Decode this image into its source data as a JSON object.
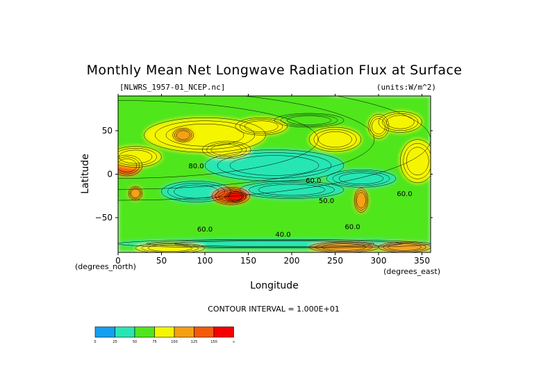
{
  "chart_data": {
    "type": "heatmap",
    "title": "Monthly Mean Net Longwave Radiation Flux at Surface",
    "file_label": "[NLWRS_1957-01_NCEP.nc]",
    "units_label": "(units:W/m^2)",
    "xlabel": "Longitude",
    "ylabel": "Latitude",
    "x_unit_label": "(degrees_east)",
    "y_unit_label": "(degrees_north)",
    "xlim": [
      0,
      360
    ],
    "ylim": [
      -90,
      90
    ],
    "x_ticks": [
      {
        "value": 0,
        "label": "0"
      },
      {
        "value": 50,
        "label": "50"
      },
      {
        "value": 100,
        "label": "100"
      },
      {
        "value": 150,
        "label": "150"
      },
      {
        "value": 200,
        "label": "200"
      },
      {
        "value": 250,
        "label": "250"
      },
      {
        "value": 300,
        "label": "300"
      },
      {
        "value": 350,
        "label": "350"
      }
    ],
    "y_ticks": [
      {
        "value": 50,
        "label": "50"
      },
      {
        "value": 0,
        "label": "0"
      },
      {
        "value": -50,
        "label": "−50"
      }
    ],
    "contour_interval_label": "CONTOUR INTERVAL = 1.000E+01",
    "contour_labels": [
      {
        "lon": 90,
        "lat": 7,
        "text": "80.0"
      },
      {
        "lon": 225,
        "lat": -10,
        "text": "60.0"
      },
      {
        "lon": 240,
        "lat": -33,
        "text": "50.0"
      },
      {
        "lon": 270,
        "lat": -63,
        "text": "60.0"
      },
      {
        "lon": 100,
        "lat": -66,
        "text": "60.0"
      },
      {
        "lon": 190,
        "lat": -72,
        "text": "40.0"
      },
      {
        "lon": 330,
        "lat": -25,
        "text": "60.0"
      }
    ],
    "colorbar": {
      "bins": [
        {
          "color": "#14a0f0",
          "label": "0"
        },
        {
          "color": "#28e6b4",
          "label": "25"
        },
        {
          "color": "#50e61e",
          "label": "50"
        },
        {
          "color": "#f5f500",
          "label": "75"
        },
        {
          "color": "#f5a014",
          "label": "100"
        },
        {
          "color": "#f55a0a",
          "label": "125"
        },
        {
          "color": "#f50000",
          "label": "150"
        }
      ],
      "end_label": "∞"
    },
    "regions": [
      {
        "lon": 0,
        "lat": 40,
        "rx": 360,
        "ry": 70,
        "value": 55
      },
      {
        "lon": 180,
        "lat": 10,
        "rx": 80,
        "ry": 18,
        "value": 40
      },
      {
        "lon": 200,
        "lat": -18,
        "rx": 60,
        "ry": 10,
        "value": 42
      },
      {
        "lon": 90,
        "lat": -20,
        "rx": 40,
        "ry": 12,
        "value": 45
      },
      {
        "lon": 280,
        "lat": -5,
        "rx": 40,
        "ry": 10,
        "value": 42
      },
      {
        "lon": 10,
        "lat": 10,
        "rx": 18,
        "ry": 12,
        "value": 125
      },
      {
        "lon": 20,
        "lat": 20,
        "rx": 30,
        "ry": 12,
        "value": 95
      },
      {
        "lon": 100,
        "lat": 45,
        "rx": 70,
        "ry": 20,
        "value": 80
      },
      {
        "lon": 75,
        "lat": 45,
        "rx": 12,
        "ry": 8,
        "value": 110
      },
      {
        "lon": 125,
        "lat": 28,
        "rx": 28,
        "ry": 10,
        "value": 85
      },
      {
        "lon": 130,
        "lat": -25,
        "rx": 22,
        "ry": 10,
        "value": 135
      },
      {
        "lon": 135,
        "lat": -26,
        "rx": 12,
        "ry": 6,
        "value": 155
      },
      {
        "lon": 250,
        "lat": 40,
        "rx": 30,
        "ry": 14,
        "value": 80
      },
      {
        "lon": 300,
        "lat": 55,
        "rx": 12,
        "ry": 14,
        "value": 95
      },
      {
        "lon": 325,
        "lat": 60,
        "rx": 25,
        "ry": 12,
        "value": 85
      },
      {
        "lon": 345,
        "lat": 15,
        "rx": 20,
        "ry": 25,
        "value": 80
      },
      {
        "lon": 280,
        "lat": -30,
        "rx": 8,
        "ry": 14,
        "value": 100
      },
      {
        "lon": 20,
        "lat": -22,
        "rx": 8,
        "ry": 8,
        "value": 100
      },
      {
        "lon": 180,
        "lat": -80,
        "rx": 180,
        "ry": 5,
        "value": 45
      },
      {
        "lon": 60,
        "lat": -85,
        "rx": 40,
        "ry": 6,
        "value": 90
      },
      {
        "lon": 260,
        "lat": -84,
        "rx": 40,
        "ry": 6,
        "value": 105
      },
      {
        "lon": 330,
        "lat": -84,
        "rx": 30,
        "ry": 6,
        "value": 115
      },
      {
        "lon": 220,
        "lat": 62,
        "rx": 40,
        "ry": 8,
        "value": 70
      },
      {
        "lon": 165,
        "lat": 55,
        "rx": 30,
        "ry": 10,
        "value": 90
      }
    ]
  }
}
